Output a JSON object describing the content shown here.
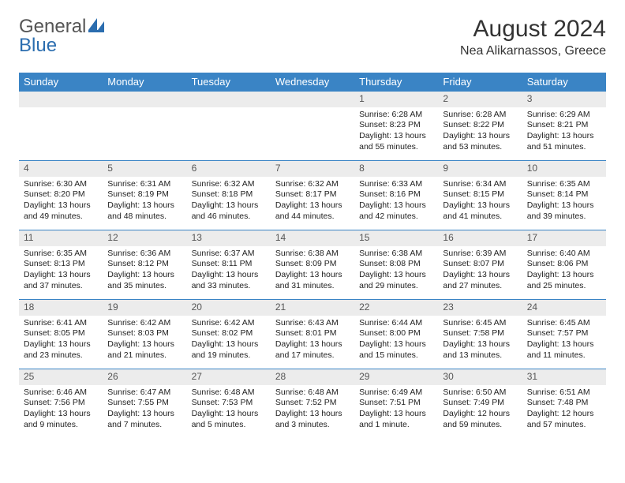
{
  "logo": {
    "text1": "General",
    "text2": "Blue"
  },
  "title": "August 2024",
  "location": "Nea Alikarnassos, Greece",
  "colors": {
    "header_bg": "#3a84c5",
    "header_text": "#ffffff",
    "daynum_bg": "#ececec",
    "daynum_border": "#3a84c5",
    "text": "#222222",
    "logo_gray": "#555555",
    "logo_blue": "#2b6daf"
  },
  "weekdays": [
    "Sunday",
    "Monday",
    "Tuesday",
    "Wednesday",
    "Thursday",
    "Friday",
    "Saturday"
  ],
  "weeks": [
    [
      null,
      null,
      null,
      null,
      {
        "n": "1",
        "sr": "Sunrise: 6:28 AM",
        "ss": "Sunset: 8:23 PM",
        "d1": "Daylight: 13 hours",
        "d2": "and 55 minutes."
      },
      {
        "n": "2",
        "sr": "Sunrise: 6:28 AM",
        "ss": "Sunset: 8:22 PM",
        "d1": "Daylight: 13 hours",
        "d2": "and 53 minutes."
      },
      {
        "n": "3",
        "sr": "Sunrise: 6:29 AM",
        "ss": "Sunset: 8:21 PM",
        "d1": "Daylight: 13 hours",
        "d2": "and 51 minutes."
      }
    ],
    [
      {
        "n": "4",
        "sr": "Sunrise: 6:30 AM",
        "ss": "Sunset: 8:20 PM",
        "d1": "Daylight: 13 hours",
        "d2": "and 49 minutes."
      },
      {
        "n": "5",
        "sr": "Sunrise: 6:31 AM",
        "ss": "Sunset: 8:19 PM",
        "d1": "Daylight: 13 hours",
        "d2": "and 48 minutes."
      },
      {
        "n": "6",
        "sr": "Sunrise: 6:32 AM",
        "ss": "Sunset: 8:18 PM",
        "d1": "Daylight: 13 hours",
        "d2": "and 46 minutes."
      },
      {
        "n": "7",
        "sr": "Sunrise: 6:32 AM",
        "ss": "Sunset: 8:17 PM",
        "d1": "Daylight: 13 hours",
        "d2": "and 44 minutes."
      },
      {
        "n": "8",
        "sr": "Sunrise: 6:33 AM",
        "ss": "Sunset: 8:16 PM",
        "d1": "Daylight: 13 hours",
        "d2": "and 42 minutes."
      },
      {
        "n": "9",
        "sr": "Sunrise: 6:34 AM",
        "ss": "Sunset: 8:15 PM",
        "d1": "Daylight: 13 hours",
        "d2": "and 41 minutes."
      },
      {
        "n": "10",
        "sr": "Sunrise: 6:35 AM",
        "ss": "Sunset: 8:14 PM",
        "d1": "Daylight: 13 hours",
        "d2": "and 39 minutes."
      }
    ],
    [
      {
        "n": "11",
        "sr": "Sunrise: 6:35 AM",
        "ss": "Sunset: 8:13 PM",
        "d1": "Daylight: 13 hours",
        "d2": "and 37 minutes."
      },
      {
        "n": "12",
        "sr": "Sunrise: 6:36 AM",
        "ss": "Sunset: 8:12 PM",
        "d1": "Daylight: 13 hours",
        "d2": "and 35 minutes."
      },
      {
        "n": "13",
        "sr": "Sunrise: 6:37 AM",
        "ss": "Sunset: 8:11 PM",
        "d1": "Daylight: 13 hours",
        "d2": "and 33 minutes."
      },
      {
        "n": "14",
        "sr": "Sunrise: 6:38 AM",
        "ss": "Sunset: 8:09 PM",
        "d1": "Daylight: 13 hours",
        "d2": "and 31 minutes."
      },
      {
        "n": "15",
        "sr": "Sunrise: 6:38 AM",
        "ss": "Sunset: 8:08 PM",
        "d1": "Daylight: 13 hours",
        "d2": "and 29 minutes."
      },
      {
        "n": "16",
        "sr": "Sunrise: 6:39 AM",
        "ss": "Sunset: 8:07 PM",
        "d1": "Daylight: 13 hours",
        "d2": "and 27 minutes."
      },
      {
        "n": "17",
        "sr": "Sunrise: 6:40 AM",
        "ss": "Sunset: 8:06 PM",
        "d1": "Daylight: 13 hours",
        "d2": "and 25 minutes."
      }
    ],
    [
      {
        "n": "18",
        "sr": "Sunrise: 6:41 AM",
        "ss": "Sunset: 8:05 PM",
        "d1": "Daylight: 13 hours",
        "d2": "and 23 minutes."
      },
      {
        "n": "19",
        "sr": "Sunrise: 6:42 AM",
        "ss": "Sunset: 8:03 PM",
        "d1": "Daylight: 13 hours",
        "d2": "and 21 minutes."
      },
      {
        "n": "20",
        "sr": "Sunrise: 6:42 AM",
        "ss": "Sunset: 8:02 PM",
        "d1": "Daylight: 13 hours",
        "d2": "and 19 minutes."
      },
      {
        "n": "21",
        "sr": "Sunrise: 6:43 AM",
        "ss": "Sunset: 8:01 PM",
        "d1": "Daylight: 13 hours",
        "d2": "and 17 minutes."
      },
      {
        "n": "22",
        "sr": "Sunrise: 6:44 AM",
        "ss": "Sunset: 8:00 PM",
        "d1": "Daylight: 13 hours",
        "d2": "and 15 minutes."
      },
      {
        "n": "23",
        "sr": "Sunrise: 6:45 AM",
        "ss": "Sunset: 7:58 PM",
        "d1": "Daylight: 13 hours",
        "d2": "and 13 minutes."
      },
      {
        "n": "24",
        "sr": "Sunrise: 6:45 AM",
        "ss": "Sunset: 7:57 PM",
        "d1": "Daylight: 13 hours",
        "d2": "and 11 minutes."
      }
    ],
    [
      {
        "n": "25",
        "sr": "Sunrise: 6:46 AM",
        "ss": "Sunset: 7:56 PM",
        "d1": "Daylight: 13 hours",
        "d2": "and 9 minutes."
      },
      {
        "n": "26",
        "sr": "Sunrise: 6:47 AM",
        "ss": "Sunset: 7:55 PM",
        "d1": "Daylight: 13 hours",
        "d2": "and 7 minutes."
      },
      {
        "n": "27",
        "sr": "Sunrise: 6:48 AM",
        "ss": "Sunset: 7:53 PM",
        "d1": "Daylight: 13 hours",
        "d2": "and 5 minutes."
      },
      {
        "n": "28",
        "sr": "Sunrise: 6:48 AM",
        "ss": "Sunset: 7:52 PM",
        "d1": "Daylight: 13 hours",
        "d2": "and 3 minutes."
      },
      {
        "n": "29",
        "sr": "Sunrise: 6:49 AM",
        "ss": "Sunset: 7:51 PM",
        "d1": "Daylight: 13 hours",
        "d2": "and 1 minute."
      },
      {
        "n": "30",
        "sr": "Sunrise: 6:50 AM",
        "ss": "Sunset: 7:49 PM",
        "d1": "Daylight: 12 hours",
        "d2": "and 59 minutes."
      },
      {
        "n": "31",
        "sr": "Sunrise: 6:51 AM",
        "ss": "Sunset: 7:48 PM",
        "d1": "Daylight: 12 hours",
        "d2": "and 57 minutes."
      }
    ]
  ]
}
